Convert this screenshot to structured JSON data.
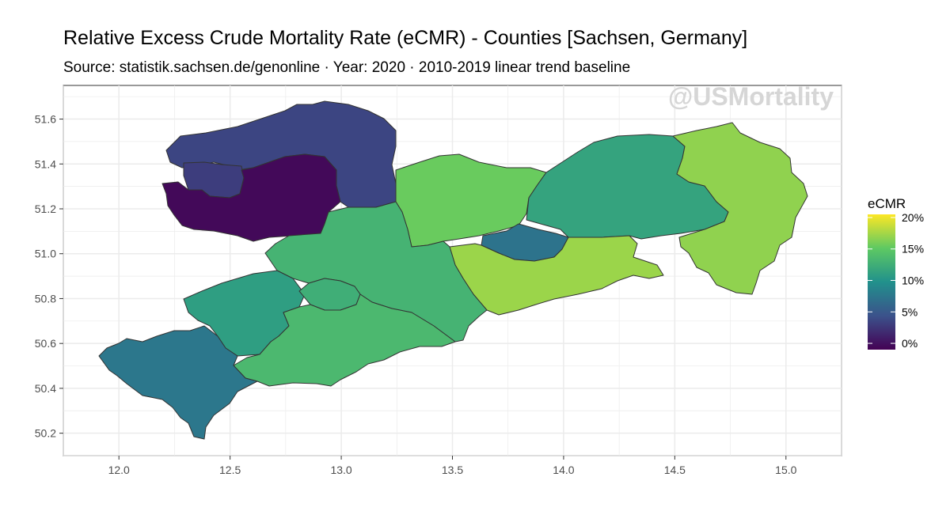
{
  "title": "Relative Excess Crude Mortality Rate (eCMR) - Counties [Sachsen, Germany]",
  "subtitle": "Source: statistik.sachsen.de/genonline · Year: 2020 · 2010-2019 linear trend baseline",
  "watermark": "@USMortality",
  "chart_data": {
    "type": "choropleth",
    "x_ticks": [
      "12.0",
      "12.5",
      "13.0",
      "13.5",
      "14.0",
      "14.5",
      "15.0"
    ],
    "y_ticks": [
      "50.2",
      "50.4",
      "50.6",
      "50.8",
      "51.0",
      "51.2",
      "51.4",
      "51.6"
    ],
    "xlim": [
      11.75,
      15.25
    ],
    "ylim": [
      50.1,
      51.75
    ],
    "grid": true,
    "legend": {
      "title": "eCMR",
      "labels": [
        "20%",
        "15%",
        "10%",
        "5%",
        "0%"
      ],
      "range": [
        -0.01,
        0.205
      ],
      "position": "right"
    },
    "regions": [
      {
        "id": "leipzig-land",
        "value": 0.035
      },
      {
        "id": "leipzig-west",
        "value": 0.03
      },
      {
        "id": "leipzig-city",
        "value": -0.005
      },
      {
        "id": "nordsachsen",
        "value": 0.155
      },
      {
        "id": "meissen",
        "value": 0.115
      },
      {
        "id": "goerlitz",
        "value": 0.168
      },
      {
        "id": "dresden",
        "value": 0.072
      },
      {
        "id": "saechsische-schweiz",
        "value": 0.172
      },
      {
        "id": "mittelsachsen",
        "value": 0.13
      },
      {
        "id": "zwickau",
        "value": 0.11
      },
      {
        "id": "chemnitz",
        "value": 0.125
      },
      {
        "id": "erzgebirgskreis",
        "value": 0.135
      },
      {
        "id": "vogtlandkreis",
        "value": 0.075
      }
    ]
  }
}
